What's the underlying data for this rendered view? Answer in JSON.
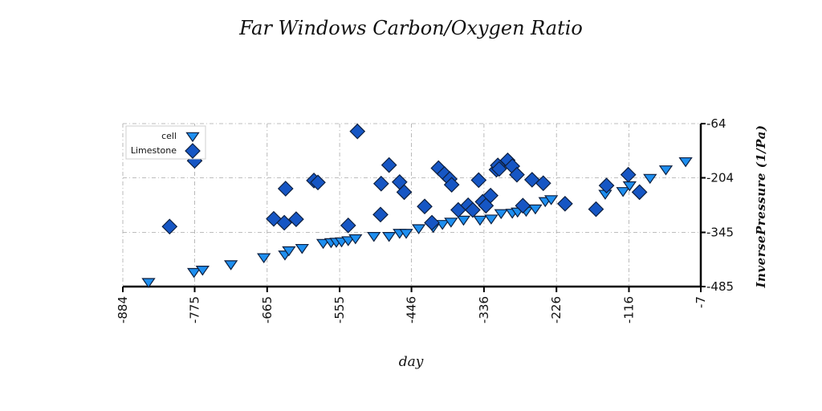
{
  "chart_data": {
    "type": "scatter",
    "title": "Far Windows Carbon/Oxygen Ratio",
    "xlabel": "day",
    "ylabel": "InversePressure (1/Pa)",
    "xlim": [
      -884,
      -7
    ],
    "ylim": [
      -485,
      -64
    ],
    "x_ticks": [
      "-884",
      "-775",
      "-665",
      "-555",
      "-446",
      "-336",
      "-226",
      "-116",
      "-7"
    ],
    "y_ticks": [
      "-64",
      "-204",
      "-345",
      "-485"
    ],
    "grid": true,
    "legend_position": "top-left",
    "series": [
      {
        "name": "cell",
        "marker": "triangle-down",
        "color": "#1e8ff0",
        "points": [
          [
            -845,
            -472
          ],
          [
            -776,
            -446
          ],
          [
            -763,
            -440
          ],
          [
            -720,
            -426
          ],
          [
            -670,
            -408
          ],
          [
            -638,
            -401
          ],
          [
            -632,
            -390
          ],
          [
            -612,
            -384
          ],
          [
            -580,
            -371
          ],
          [
            -568,
            -369
          ],
          [
            -560,
            -368
          ],
          [
            -552,
            -367
          ],
          [
            -542,
            -364
          ],
          [
            -531,
            -359
          ],
          [
            -503,
            -353
          ],
          [
            -480,
            -353
          ],
          [
            -464,
            -345
          ],
          [
            -454,
            -345
          ],
          [
            -435,
            -333
          ],
          [
            -413,
            -330
          ],
          [
            -399,
            -322
          ],
          [
            -386,
            -316
          ],
          [
            -367,
            -311
          ],
          [
            -342,
            -311
          ],
          [
            -325,
            -308
          ],
          [
            -310,
            -294
          ],
          [
            -293,
            -293
          ],
          [
            -285,
            -290
          ],
          [
            -272,
            -288
          ],
          [
            -258,
            -282
          ],
          [
            -243,
            -263
          ],
          [
            -234,
            -258
          ],
          [
            -152,
            -244
          ],
          [
            -125,
            -237
          ],
          [
            -115,
            -222
          ],
          [
            -84,
            -203
          ],
          [
            -60,
            -181
          ],
          [
            -30,
            -160
          ]
        ]
      },
      {
        "name": "Limestone",
        "marker": "diamond",
        "color": "#1656c4",
        "points": [
          [
            -813,
            -330
          ],
          [
            -775,
            -160
          ],
          [
            -655,
            -310
          ],
          [
            -639,
            -320
          ],
          [
            -637,
            -232
          ],
          [
            -621,
            -311
          ],
          [
            -594,
            -211
          ],
          [
            -588,
            -216
          ],
          [
            -542,
            -327
          ],
          [
            -528,
            -84
          ],
          [
            -493,
            -299
          ],
          [
            -492,
            -219
          ],
          [
            -480,
            -171
          ],
          [
            -464,
            -215
          ],
          [
            -457,
            -241
          ],
          [
            -426,
            -278
          ],
          [
            -415,
            -320
          ],
          [
            -405,
            -179
          ],
          [
            -396,
            -194
          ],
          [
            -388,
            -207
          ],
          [
            -385,
            -222
          ],
          [
            -375,
            -287
          ],
          [
            -360,
            -275
          ],
          [
            -353,
            -287
          ],
          [
            -344,
            -210
          ],
          [
            -338,
            -266
          ],
          [
            -333,
            -276
          ],
          [
            -326,
            -250
          ],
          [
            -317,
            -183
          ],
          [
            -315,
            -172
          ],
          [
            -313,
            -181
          ],
          [
            -300,
            -159
          ],
          [
            -293,
            -174
          ],
          [
            -286,
            -196
          ],
          [
            -277,
            -276
          ],
          [
            -263,
            -209
          ],
          [
            -246,
            -218
          ],
          [
            -213,
            -271
          ],
          [
            -166,
            -285
          ],
          [
            -150,
            -224
          ],
          [
            -117,
            -196
          ],
          [
            -100,
            -241
          ]
        ]
      }
    ]
  }
}
